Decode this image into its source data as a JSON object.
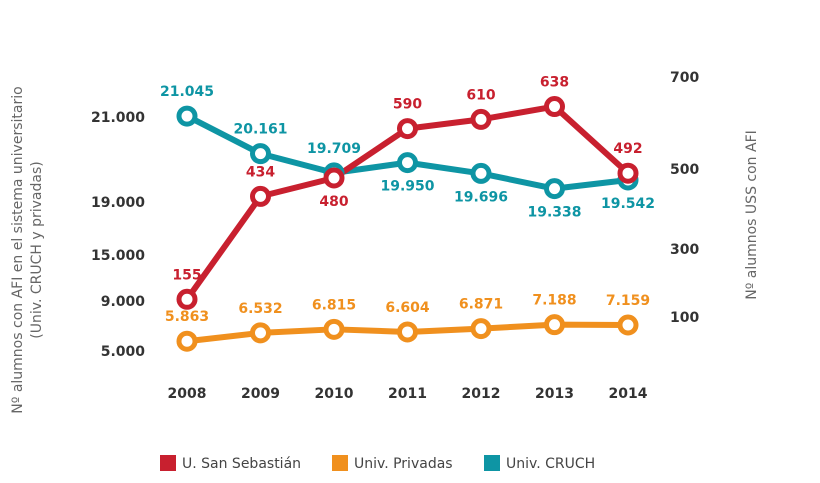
{
  "chart_data": {
    "type": "line",
    "y_label": [
      "Nº alumnos con AFI en el sistema universitario",
      "(Univ. CRUCH y privadas)"
    ],
    "y2_label": "Nº alumnos USS con AFI",
    "categories": [
      "2008",
      "2009",
      "2010",
      "2011",
      "2012",
      "2013",
      "2014"
    ],
    "ylim": [
      5000,
      21000
    ],
    "yticks": [
      {
        "value": 21000,
        "label": "21.000"
      },
      {
        "value": 19000,
        "label": "19.000"
      },
      {
        "value": 15000,
        "label": "15.000"
      },
      {
        "value": 9000,
        "label": "9.000"
      },
      {
        "value": 5000,
        "label": "5.000"
      }
    ],
    "y2lim": [
      100,
      700
    ],
    "y2ticks": [
      700,
      500,
      300,
      100
    ],
    "legend": "bottom",
    "series": [
      {
        "name": "U. San Sebastián",
        "color": "#c8202f",
        "axis": "y2",
        "values": [
          155,
          434,
          480,
          590,
          610,
          638,
          492
        ]
      },
      {
        "name": "Univ. Privadas",
        "color": "#f0901e",
        "values": [
          5863,
          6532,
          6815,
          6604,
          6871,
          7188,
          7159
        ],
        "value_labels": [
          "5.863",
          "6.532",
          "6.815",
          "6.604",
          "6.871",
          "7.188",
          "7.159"
        ]
      },
      {
        "name": "Univ. CRUCH",
        "color": "#0e95a4",
        "values": [
          21045,
          20161,
          19709,
          19950,
          19696,
          19338,
          19542
        ],
        "value_labels": [
          "21.045",
          "20.161",
          "19.709",
          "19.950",
          "19.696",
          "19.338",
          "19.542"
        ]
      }
    ]
  }
}
